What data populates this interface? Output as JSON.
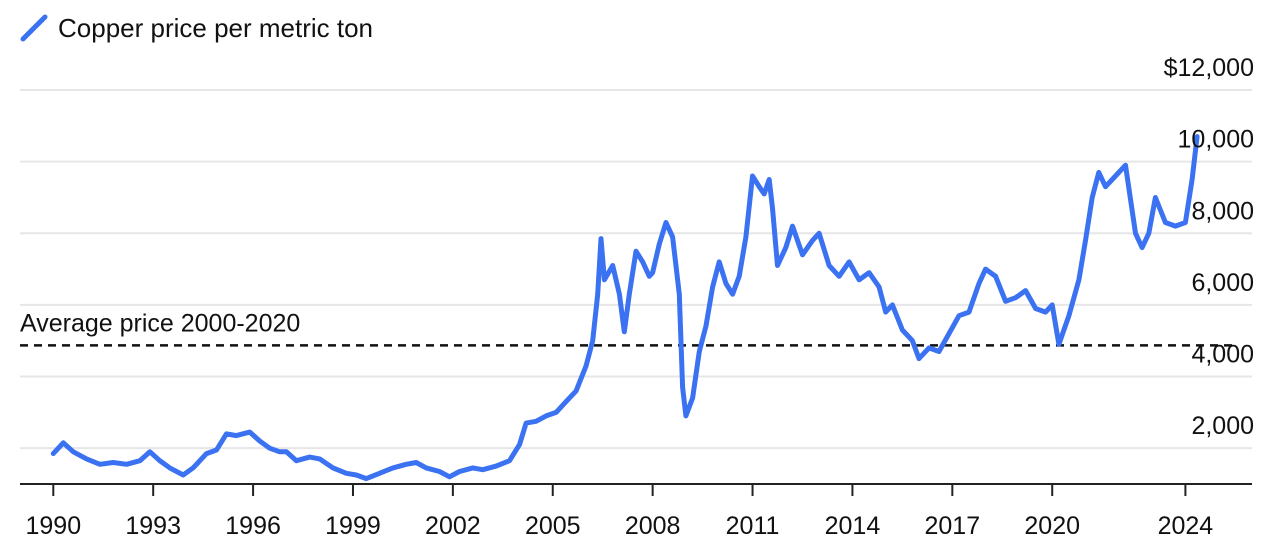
{
  "chart_data": {
    "type": "line",
    "legend": {
      "label": "Copper price per metric ton",
      "placement": "top-left"
    },
    "series": [
      {
        "name": "Copper price per metric ton",
        "color": "#3b72f2",
        "points": [
          [
            1990.0,
            1850
          ],
          [
            1990.3,
            2150
          ],
          [
            1990.6,
            1900
          ],
          [
            1991.0,
            1700
          ],
          [
            1991.4,
            1550
          ],
          [
            1991.8,
            1600
          ],
          [
            1992.2,
            1550
          ],
          [
            1992.6,
            1650
          ],
          [
            1992.9,
            1900
          ],
          [
            1993.2,
            1650
          ],
          [
            1993.5,
            1450
          ],
          [
            1993.9,
            1250
          ],
          [
            1994.2,
            1450
          ],
          [
            1994.6,
            1850
          ],
          [
            1994.9,
            1950
          ],
          [
            1995.2,
            2400
          ],
          [
            1995.5,
            2350
          ],
          [
            1995.9,
            2450
          ],
          [
            1996.2,
            2200
          ],
          [
            1996.5,
            2000
          ],
          [
            1996.8,
            1900
          ],
          [
            1997.0,
            1900
          ],
          [
            1997.3,
            1650
          ],
          [
            1997.7,
            1750
          ],
          [
            1998.0,
            1700
          ],
          [
            1998.4,
            1450
          ],
          [
            1998.8,
            1300
          ],
          [
            1999.1,
            1250
          ],
          [
            1999.4,
            1150
          ],
          [
            1999.8,
            1300
          ],
          [
            2000.2,
            1450
          ],
          [
            2000.6,
            1550
          ],
          [
            2000.9,
            1600
          ],
          [
            2001.2,
            1450
          ],
          [
            2001.6,
            1350
          ],
          [
            2001.9,
            1200
          ],
          [
            2002.2,
            1350
          ],
          [
            2002.6,
            1450
          ],
          [
            2002.9,
            1400
          ],
          [
            2003.3,
            1500
          ],
          [
            2003.7,
            1650
          ],
          [
            2004.0,
            2100
          ],
          [
            2004.2,
            2700
          ],
          [
            2004.5,
            2750
          ],
          [
            2004.8,
            2900
          ],
          [
            2005.1,
            3000
          ],
          [
            2005.4,
            3300
          ],
          [
            2005.7,
            3600
          ],
          [
            2006.0,
            4300
          ],
          [
            2006.2,
            5000
          ],
          [
            2006.35,
            6300
          ],
          [
            2006.45,
            7850
          ],
          [
            2006.55,
            6700
          ],
          [
            2006.8,
            7100
          ],
          [
            2007.0,
            6300
          ],
          [
            2007.15,
            5250
          ],
          [
            2007.3,
            6300
          ],
          [
            2007.5,
            7500
          ],
          [
            2007.7,
            7200
          ],
          [
            2007.9,
            6800
          ],
          [
            2008.0,
            6900
          ],
          [
            2008.2,
            7700
          ],
          [
            2008.4,
            8300
          ],
          [
            2008.6,
            7900
          ],
          [
            2008.8,
            6300
          ],
          [
            2008.9,
            3700
          ],
          [
            2009.0,
            2900
          ],
          [
            2009.2,
            3400
          ],
          [
            2009.4,
            4700
          ],
          [
            2009.6,
            5400
          ],
          [
            2009.8,
            6500
          ],
          [
            2010.0,
            7200
          ],
          [
            2010.2,
            6600
          ],
          [
            2010.4,
            6300
          ],
          [
            2010.6,
            6800
          ],
          [
            2010.8,
            7900
          ],
          [
            2011.0,
            9600
          ],
          [
            2011.2,
            9300
          ],
          [
            2011.35,
            9100
          ],
          [
            2011.5,
            9500
          ],
          [
            2011.6,
            8700
          ],
          [
            2011.75,
            7100
          ],
          [
            2012.0,
            7600
          ],
          [
            2012.2,
            8200
          ],
          [
            2012.5,
            7400
          ],
          [
            2012.8,
            7800
          ],
          [
            2013.0,
            8000
          ],
          [
            2013.3,
            7100
          ],
          [
            2013.6,
            6800
          ],
          [
            2013.9,
            7200
          ],
          [
            2014.2,
            6700
          ],
          [
            2014.5,
            6900
          ],
          [
            2014.8,
            6500
          ],
          [
            2015.0,
            5800
          ],
          [
            2015.2,
            6000
          ],
          [
            2015.5,
            5300
          ],
          [
            2015.8,
            5000
          ],
          [
            2016.0,
            4500
          ],
          [
            2016.3,
            4800
          ],
          [
            2016.6,
            4700
          ],
          [
            2016.9,
            5200
          ],
          [
            2017.2,
            5700
          ],
          [
            2017.5,
            5800
          ],
          [
            2017.8,
            6600
          ],
          [
            2018.0,
            7000
          ],
          [
            2018.3,
            6800
          ],
          [
            2018.6,
            6100
          ],
          [
            2018.9,
            6200
          ],
          [
            2019.2,
            6400
          ],
          [
            2019.5,
            5900
          ],
          [
            2019.8,
            5800
          ],
          [
            2020.0,
            6000
          ],
          [
            2020.2,
            4900
          ],
          [
            2020.5,
            5700
          ],
          [
            2020.8,
            6700
          ],
          [
            2021.0,
            7800
          ],
          [
            2021.2,
            9000
          ],
          [
            2021.4,
            9700
          ],
          [
            2021.6,
            9300
          ],
          [
            2021.9,
            9600
          ],
          [
            2022.2,
            9900
          ],
          [
            2022.5,
            8000
          ],
          [
            2022.7,
            7600
          ],
          [
            2022.9,
            8000
          ],
          [
            2023.1,
            9000
          ],
          [
            2023.4,
            8300
          ],
          [
            2023.7,
            8200
          ],
          [
            2024.0,
            8300
          ],
          [
            2024.2,
            9500
          ],
          [
            2024.35,
            10700
          ]
        ]
      }
    ],
    "x_ticks": [
      1990,
      1993,
      1996,
      1999,
      2002,
      2005,
      2008,
      2011,
      2014,
      2017,
      2020,
      2024
    ],
    "x_tick_labels": [
      "1990",
      "1993",
      "1996",
      "1999",
      "2002",
      "2005",
      "2008",
      "2011",
      "2014",
      "2017",
      "2020",
      "2024"
    ],
    "y_ticks": [
      2000,
      4000,
      6000,
      8000,
      10000,
      12000
    ],
    "y_tick_labels": [
      "2,000",
      "4,000",
      "6,000",
      "8,000",
      "10,000",
      "$12,000"
    ],
    "xlim": [
      1989,
      2026
    ],
    "ylim": [
      1000,
      12000
    ],
    "grid": true,
    "reference_line": {
      "label": "Average price 2000-2020",
      "value": 4870,
      "x_range": [
        1989,
        2025.5
      ],
      "style": "dashed"
    }
  }
}
